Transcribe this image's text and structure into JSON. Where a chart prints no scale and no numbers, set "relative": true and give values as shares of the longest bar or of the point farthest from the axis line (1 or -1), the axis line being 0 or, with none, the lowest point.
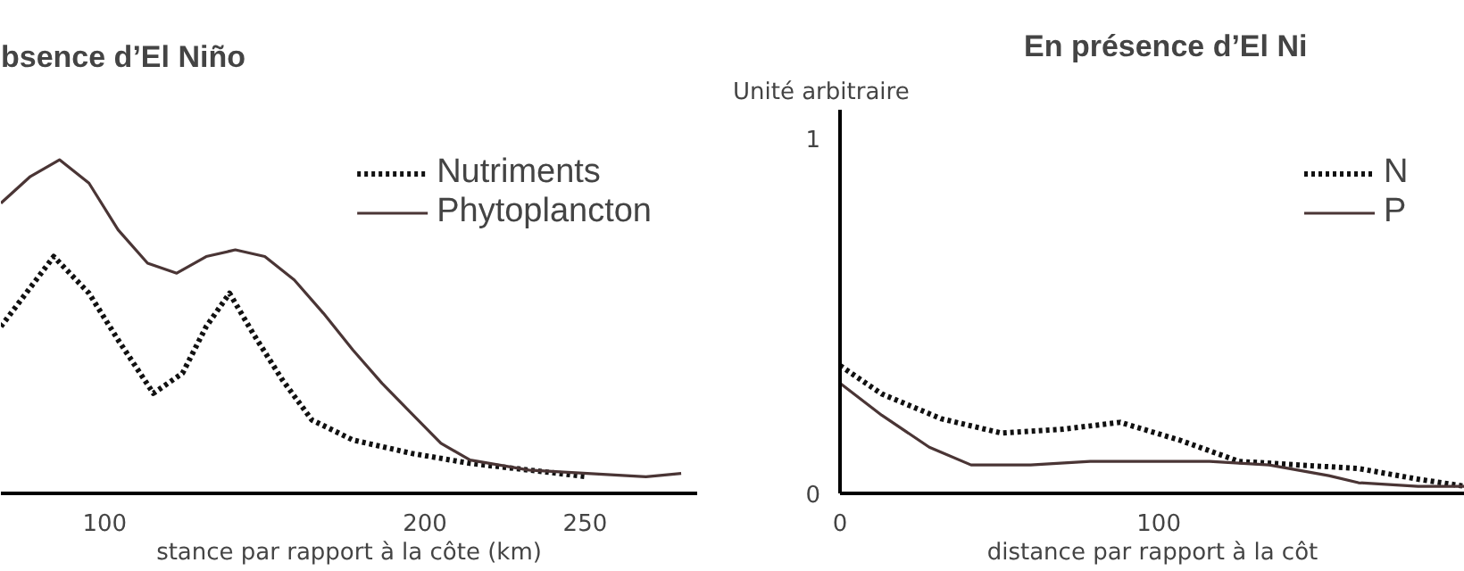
{
  "chart_data": [
    {
      "type": "line",
      "title": "bsence d’El Niño",
      "xlabel": "stance par rapport à la côte (km)",
      "xlim": [
        67.6,
        285
      ],
      "xticks": [
        100,
        200,
        250
      ],
      "relative": true,
      "tick_labels": "x",
      "legend": "top right",
      "series": [
        {
          "name": "Nutriments",
          "color": "#111111",
          "line_style": "dotted",
          "x": [
            67.6,
            73.1,
            78.6,
            84.1,
            95.1,
            104.2,
            115.2,
            124.3,
            131.7,
            139,
            146.3,
            155.5,
            164.7,
            177.5,
            195.8,
            214.1,
            232.4,
            250.7
          ],
          "values": [
            0.5,
            0.57,
            0.64,
            0.71,
            0.6,
            0.46,
            0.3,
            0.36,
            0.5,
            0.6,
            0.48,
            0.34,
            0.22,
            0.16,
            0.12,
            0.09,
            0.07,
            0.05
          ]
        },
        {
          "name": "Phytoplancton",
          "color": "#4a3535",
          "line_style": "solid",
          "x": [
            67.6,
            76.8,
            85.9,
            95.1,
            104.2,
            113.4,
            122.5,
            131.7,
            140.8,
            150,
            159.2,
            168.3,
            177.5,
            186.6,
            195.8,
            205,
            214.1,
            232.4,
            250.7,
            269,
            280
          ],
          "values": [
            0.87,
            0.95,
            1,
            0.93,
            0.79,
            0.69,
            0.66,
            0.71,
            0.73,
            0.71,
            0.64,
            0.54,
            0.43,
            0.33,
            0.24,
            0.15,
            0.1,
            0.07,
            0.06,
            0.05,
            0.06
          ]
        }
      ]
    },
    {
      "type": "line",
      "title": "En présence d’El Ni",
      "xlabel": "distance par rapport à la côt",
      "ylabel": "Unité arbitraire",
      "xlim": [
        0,
        196
      ],
      "xticks": [
        0,
        100
      ],
      "ylim": [
        0,
        1.08
      ],
      "yticks": [
        0,
        1
      ],
      "legend": "top right",
      "series": [
        {
          "name": "N",
          "color": "#111111",
          "line_style": "dotted",
          "x": [
            0,
            13.1,
            31.8,
            50.5,
            69.2,
            87.9,
            106.5,
            125.2,
            143.9,
            162.6,
            181.3,
            196
          ],
          "values": [
            0.36,
            0.28,
            0.21,
            0.17,
            0.18,
            0.2,
            0.15,
            0.09,
            0.08,
            0.07,
            0.04,
            0.02
          ]
        },
        {
          "name": "P",
          "color": "#4a3535",
          "line_style": "solid",
          "x": [
            0,
            13.1,
            28,
            41.1,
            59.8,
            78.5,
            97.2,
            115.9,
            134.6,
            153.3,
            162.6,
            181.3,
            196
          ],
          "values": [
            0.31,
            0.22,
            0.13,
            0.08,
            0.08,
            0.09,
            0.09,
            0.09,
            0.08,
            0.05,
            0.03,
            0.02,
            0.02
          ]
        }
      ]
    }
  ]
}
